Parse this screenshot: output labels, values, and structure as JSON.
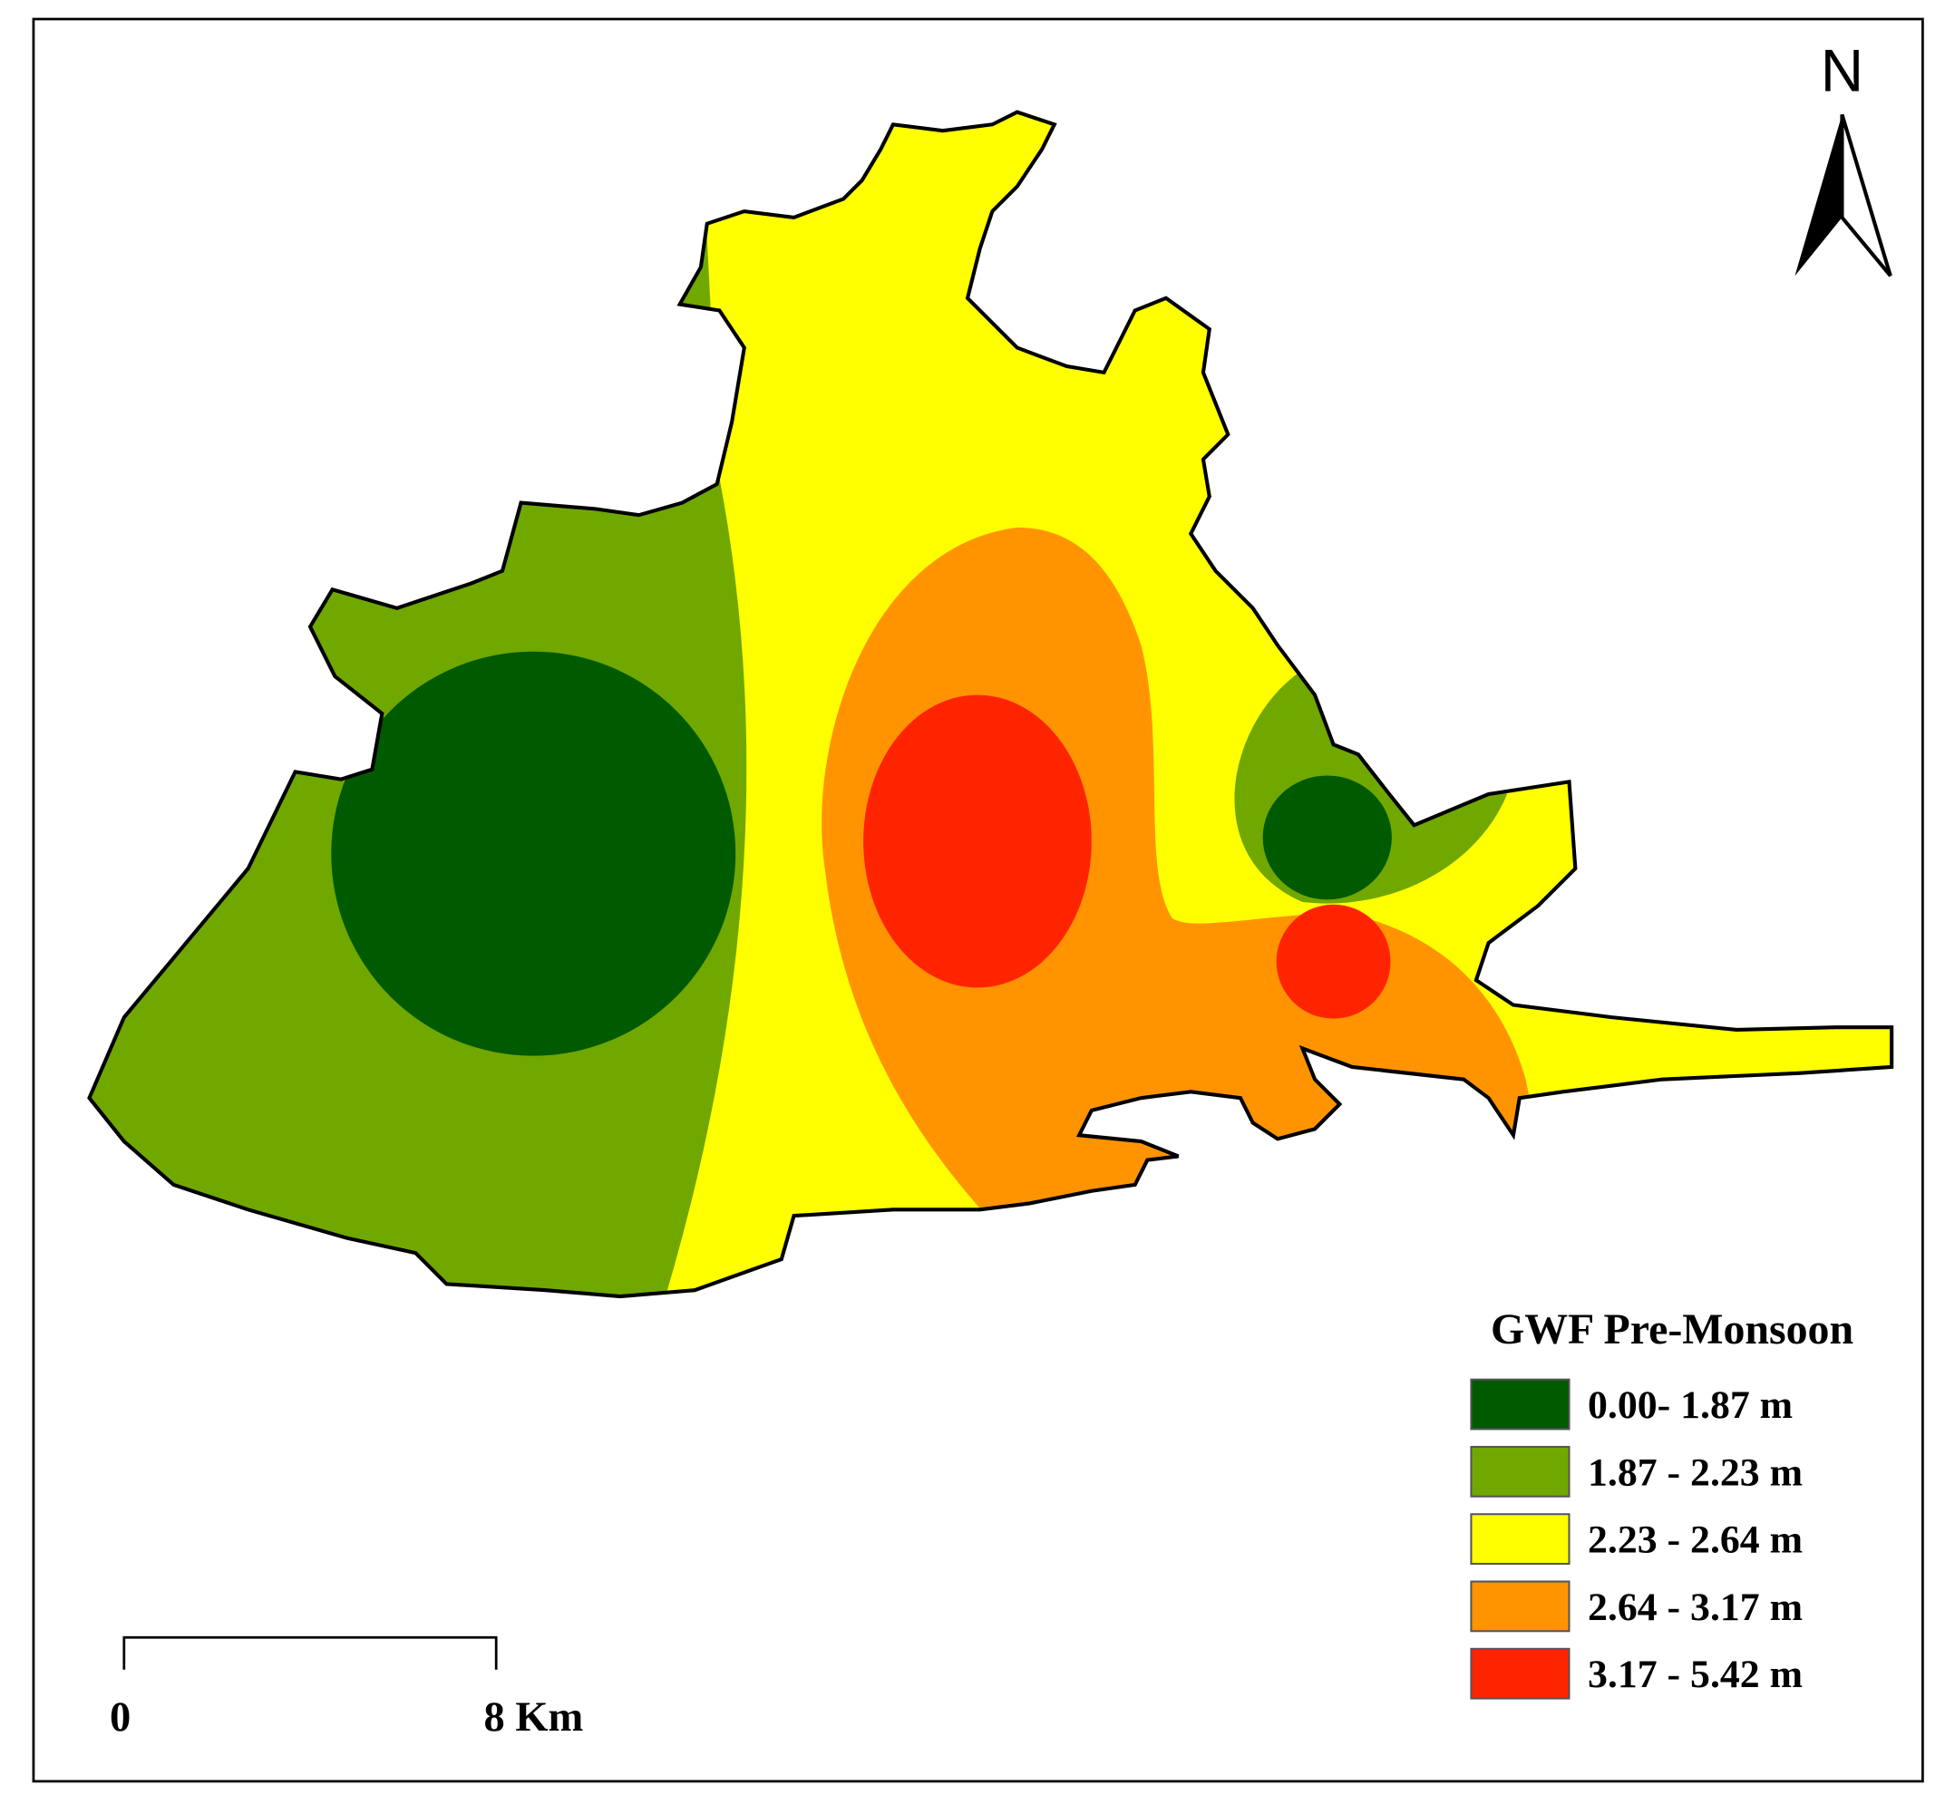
{
  "map": {
    "north_label": "N",
    "scale_bar": {
      "start_label": "0",
      "end_label": "8 Km"
    },
    "legend": {
      "title": "GWF Pre-Monsoon",
      "items": [
        {
          "label": "0.00- 1.87 m",
          "color": "#005a00"
        },
        {
          "label": "1.87 - 2.23 m",
          "color": "#70a800"
        },
        {
          "label": "2.23 - 2.64 m",
          "color": "#ffff00"
        },
        {
          "label": "2.64 - 3.17 m",
          "color": "#ff9400"
        },
        {
          "label": "3.17 - 5.42 m",
          "color": "#ff2400"
        }
      ]
    }
  }
}
